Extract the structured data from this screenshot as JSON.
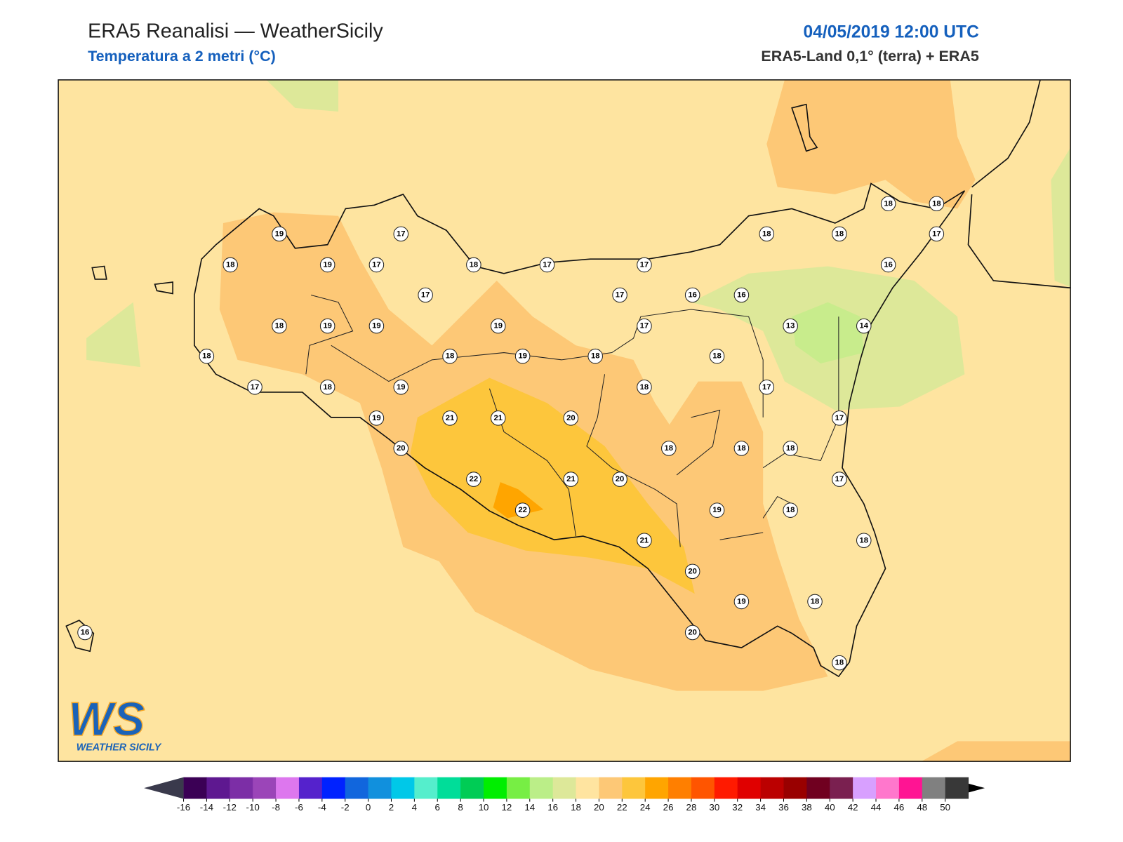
{
  "header": {
    "title": "ERA5 Reanalisi — WeatherSicily",
    "subtitle": "Temperatura a 2 metri (°C)",
    "datetime": "04/05/2019 12:00 UTC",
    "source": "ERA5-Land 0,1° (terra) + ERA5"
  },
  "stations": [
    19,
    17,
    18,
    19,
    17,
    18,
    17,
    17,
    18,
    18,
    18,
    18,
    17,
    16,
    17,
    17,
    16,
    16,
    18,
    19,
    19,
    19,
    17,
    13,
    14,
    18,
    18,
    19,
    18,
    18,
    17,
    18,
    19,
    18,
    17,
    19,
    21,
    21,
    20,
    17,
    20,
    18,
    18,
    18,
    22,
    21,
    20,
    17,
    22,
    19,
    18,
    18,
    21,
    20,
    19,
    18,
    20,
    18,
    16
  ],
  "colorbar": {
    "ticks": [
      -16,
      -14,
      -12,
      -10,
      -8,
      -6,
      -4,
      -2,
      0,
      2,
      4,
      6,
      8,
      10,
      12,
      14,
      16,
      18,
      20,
      22,
      24,
      26,
      28,
      30,
      32,
      34,
      36,
      38,
      40,
      42,
      44,
      46,
      48,
      50
    ],
    "colors": [
      "#3b0055",
      "#5e1890",
      "#7c2ea6",
      "#9b45b8",
      "#dd77ee",
      "#5522cc",
      "#0022ff",
      "#1166dd",
      "#1190dd",
      "#00c8e8",
      "#55eecc",
      "#00dd99",
      "#00cc55",
      "#00ee00",
      "#77ee44",
      "#bbee88",
      "#dde899",
      "#ffe4a0",
      "#fdc876",
      "#fdc63c",
      "#ffa500",
      "#ff7f00",
      "#ff5500",
      "#ff1a00",
      "#e00000",
      "#bb0000",
      "#990000",
      "#700020",
      "#7a2050",
      "#d8a0ff",
      "#ff77cc",
      "#ff1493",
      "#808080",
      "#383838"
    ],
    "under_color": "#3a3a4c",
    "over_color": "#000000"
  },
  "logo": {
    "text": "WS",
    "caption": "WEATHER SICILY"
  }
}
